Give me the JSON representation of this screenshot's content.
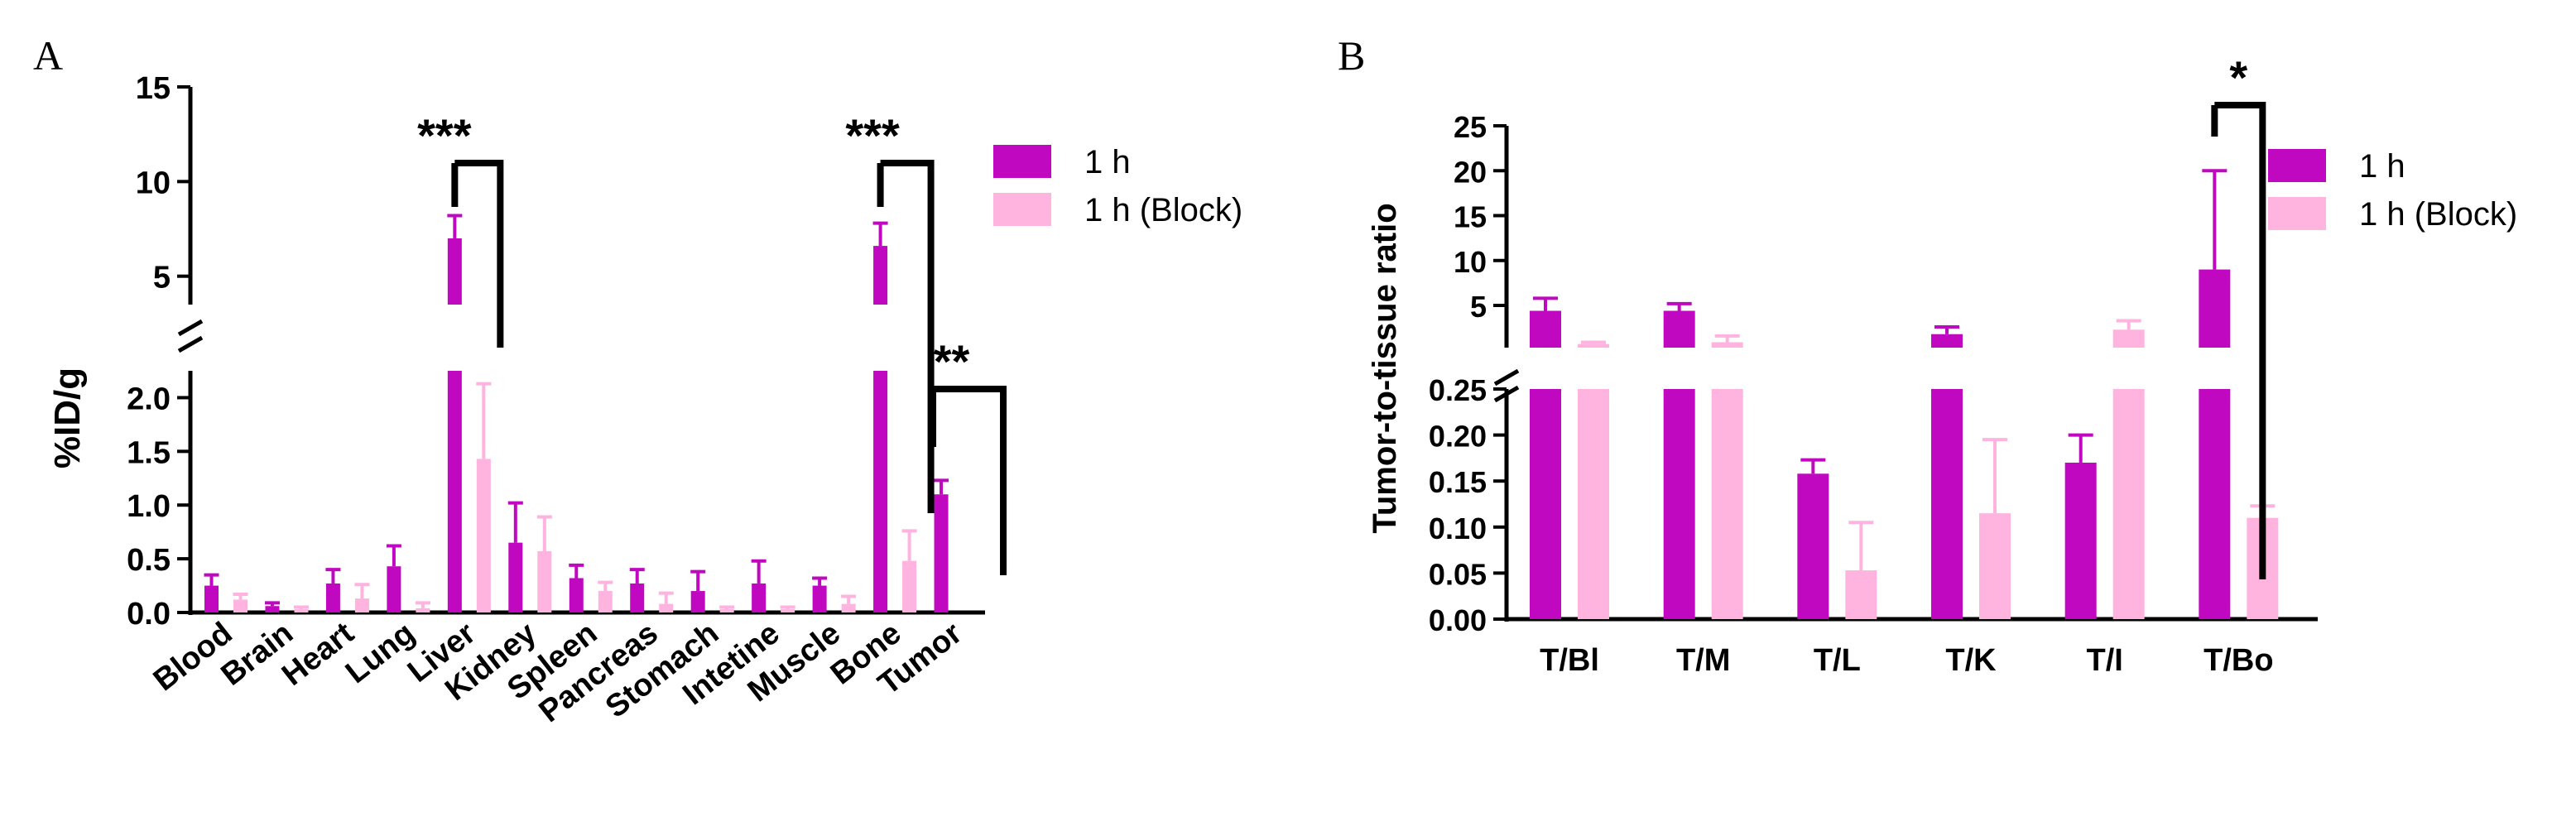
{
  "colors": {
    "solid": "#bf08bf",
    "light": "#ffb3df",
    "axis": "#000000"
  },
  "chart_data": [
    {
      "panel_label": "A",
      "type": "bar",
      "ylabel": "%ID/g",
      "categories": [
        "Blood",
        "Brain",
        "Heart",
        "Lung",
        "Liver",
        "Kidney",
        "Spleen",
        "Pancreas",
        "Stomach",
        "Intetine",
        "Muscle",
        "Bone",
        "Tumor"
      ],
      "series": [
        {
          "name": "1 h",
          "values": [
            0.25,
            0.06,
            0.27,
            0.43,
            7.0,
            0.65,
            0.32,
            0.27,
            0.2,
            0.27,
            0.25,
            6.6,
            1.1
          ],
          "errors": [
            0.1,
            0.03,
            0.13,
            0.19,
            1.2,
            0.37,
            0.12,
            0.13,
            0.18,
            0.21,
            0.07,
            1.2,
            0.13
          ]
        },
        {
          "name": "1 h (Block)",
          "values": [
            0.12,
            0.03,
            0.13,
            0.04,
            1.43,
            0.57,
            0.2,
            0.08,
            0.03,
            0.03,
            0.08,
            0.48,
            0.0
          ],
          "errors": [
            0.05,
            0.02,
            0.13,
            0.05,
            0.7,
            0.32,
            0.08,
            0.1,
            0.02,
            0.02,
            0.07,
            0.28,
            0.0
          ]
        }
      ],
      "y_segments": [
        {
          "range": [
            0,
            2.25
          ],
          "ticks": [
            "0.0",
            "0.5",
            "1.0",
            "1.5",
            "2.0"
          ]
        },
        {
          "range": [
            3.5,
            15
          ],
          "ticks": [
            "5",
            "10",
            "15"
          ]
        }
      ],
      "annotations": [
        {
          "text": "***",
          "category": "Liver"
        },
        {
          "text": "***",
          "category": "Bone"
        },
        {
          "text": "**",
          "category": "Tumor"
        }
      ],
      "legend": {
        "placement": "right",
        "entries": [
          "1 h",
          "1 h (Block)"
        ]
      }
    },
    {
      "panel_label": "B",
      "type": "bar",
      "ylabel": "Tumor-to-tissue ratio",
      "categories": [
        "T/Bl",
        "T/M",
        "T/L",
        "T/K",
        "T/I",
        "T/Bo"
      ],
      "series": [
        {
          "name": "1 h",
          "values": [
            4.4,
            4.4,
            0.158,
            1.8,
            0.17,
            9.0
          ],
          "errors": [
            1.4,
            0.8,
            0.015,
            0.8,
            0.03,
            11.0
          ]
        },
        {
          "name": "1 h (Block)",
          "values": [
            0.7,
            0.9,
            0.053,
            0.115,
            2.3,
            0.11
          ],
          "errors": [
            0.2,
            0.7,
            0.052,
            0.08,
            1.0,
            0.013
          ]
        }
      ],
      "y_segments": [
        {
          "range": [
            0,
            0.25
          ],
          "ticks": [
            "0.00",
            "0.05",
            "0.10",
            "0.15",
            "0.20",
            "0.25"
          ]
        },
        {
          "range": [
            0.3,
            25
          ],
          "ticks": [
            "5",
            "10",
            "15",
            "20",
            "25"
          ]
        }
      ],
      "annotations": [
        {
          "text": "*",
          "category": "T/Bo"
        }
      ],
      "legend": {
        "placement": "right",
        "entries": [
          "1 h",
          "1 h (Block)"
        ]
      }
    }
  ]
}
